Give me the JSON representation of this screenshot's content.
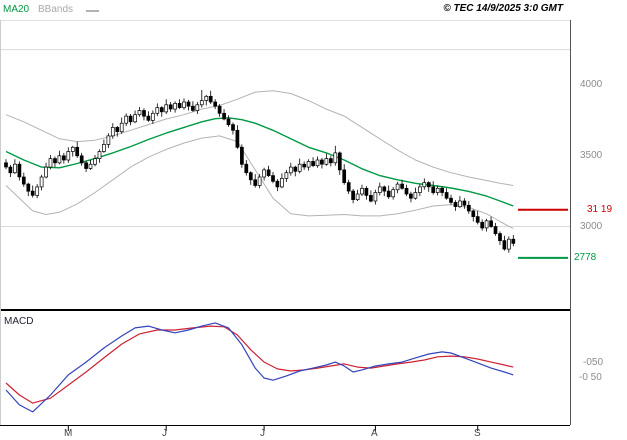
{
  "header": {
    "legend_ma20": "MA20",
    "legend_bbands": "BBands",
    "copyright": "© TEC 14/9/2025 3:0 GMT"
  },
  "chart_data": {
    "type": "candlestick",
    "title": "",
    "price_axis": {
      "labels": [
        {
          "text": "4000",
          "value": 4000
        },
        {
          "text": "3500",
          "value": 3500
        },
        {
          "text": "3000",
          "value": 3000
        }
      ],
      "ylim": [
        2420,
        4460
      ]
    },
    "x_axis": {
      "ticks": [
        {
          "label": "M",
          "bar": 14
        },
        {
          "label": "J",
          "bar": 36
        },
        {
          "label": "J",
          "bar": 58
        },
        {
          "label": "A",
          "bar": 83
        },
        {
          "label": "S",
          "bar": 106
        }
      ]
    },
    "gridlines": [
      4250,
      3000
    ],
    "candles": [
      [
        3450,
        3475,
        3405,
        3420
      ],
      [
        3420,
        3435,
        3350,
        3380
      ],
      [
        3380,
        3475,
        3370,
        3440
      ],
      [
        3440,
        3460,
        3325,
        3350
      ],
      [
        3350,
        3380,
        3280,
        3300
      ],
      [
        3300,
        3310,
        3215,
        3250
      ],
      [
        3250,
        3290,
        3205,
        3220
      ],
      [
        3220,
        3300,
        3200,
        3280
      ],
      [
        3280,
        3365,
        3255,
        3350
      ],
      [
        3350,
        3450,
        3340,
        3420
      ],
      [
        3420,
        3505,
        3405,
        3480
      ],
      [
        3480,
        3495,
        3420,
        3450
      ],
      [
        3450,
        3535,
        3440,
        3500
      ],
      [
        3500,
        3520,
        3445,
        3470
      ],
      [
        3470,
        3560,
        3450,
        3530
      ],
      [
        3530,
        3570,
        3495,
        3560
      ],
      [
        3560,
        3600,
        3485,
        3500
      ],
      [
        3500,
        3520,
        3430,
        3450
      ],
      [
        3450,
        3465,
        3385,
        3410
      ],
      [
        3410,
        3470,
        3400,
        3440
      ],
      [
        3440,
        3505,
        3425,
        3480
      ],
      [
        3480,
        3545,
        3450,
        3530
      ],
      [
        3530,
        3615,
        3520,
        3580
      ],
      [
        3580,
        3660,
        3555,
        3640
      ],
      [
        3640,
        3730,
        3620,
        3700
      ],
      [
        3700,
        3710,
        3635,
        3670
      ],
      [
        3670,
        3770,
        3655,
        3730
      ],
      [
        3730,
        3800,
        3710,
        3780
      ],
      [
        3780,
        3795,
        3715,
        3740
      ],
      [
        3740,
        3820,
        3730,
        3790
      ],
      [
        3790,
        3845,
        3775,
        3820
      ],
      [
        3820,
        3835,
        3750,
        3780
      ],
      [
        3780,
        3815,
        3740,
        3750
      ],
      [
        3750,
        3820,
        3725,
        3800
      ],
      [
        3800,
        3870,
        3780,
        3840
      ],
      [
        3840,
        3850,
        3775,
        3810
      ],
      [
        3810,
        3900,
        3795,
        3860
      ],
      [
        3860,
        3880,
        3810,
        3830
      ],
      [
        3830,
        3885,
        3805,
        3870
      ],
      [
        3870,
        3900,
        3830,
        3840
      ],
      [
        3840,
        3905,
        3825,
        3880
      ],
      [
        3880,
        3895,
        3820,
        3850
      ],
      [
        3850,
        3885,
        3810,
        3820
      ],
      [
        3820,
        3880,
        3795,
        3860
      ],
      [
        3860,
        3965,
        3840,
        3890
      ],
      [
        3890,
        3930,
        3855,
        3920
      ],
      [
        3920,
        3960,
        3865,
        3880
      ],
      [
        3880,
        3900,
        3830,
        3850
      ],
      [
        3850,
        3865,
        3775,
        3800
      ],
      [
        3800,
        3830,
        3750,
        3760
      ],
      [
        3760,
        3785,
        3705,
        3720
      ],
      [
        3720,
        3735,
        3650,
        3680
      ],
      [
        3680,
        3715,
        3550,
        3560
      ],
      [
        3560,
        3580,
        3415,
        3440
      ],
      [
        3440,
        3470,
        3360,
        3380
      ],
      [
        3380,
        3390,
        3295,
        3330
      ],
      [
        3330,
        3370,
        3275,
        3290
      ],
      [
        3290,
        3370,
        3270,
        3350
      ],
      [
        3350,
        3415,
        3325,
        3400
      ],
      [
        3400,
        3430,
        3350,
        3360
      ],
      [
        3360,
        3385,
        3305,
        3320
      ],
      [
        3320,
        3335,
        3250,
        3280
      ],
      [
        3280,
        3375,
        3270,
        3340
      ],
      [
        3340,
        3400,
        3315,
        3380
      ],
      [
        3380,
        3450,
        3360,
        3420
      ],
      [
        3420,
        3430,
        3355,
        3390
      ],
      [
        3390,
        3480,
        3375,
        3440
      ],
      [
        3440,
        3460,
        3400,
        3420
      ],
      [
        3420,
        3475,
        3395,
        3460
      ],
      [
        3460,
        3490,
        3420,
        3430
      ],
      [
        3430,
        3495,
        3415,
        3470
      ],
      [
        3470,
        3485,
        3410,
        3440
      ],
      [
        3440,
        3515,
        3430,
        3480
      ],
      [
        3480,
        3500,
        3425,
        3450
      ],
      [
        3450,
        3570,
        3430,
        3520
      ],
      [
        3520,
        3530,
        3365,
        3400
      ],
      [
        3400,
        3440,
        3295,
        3310
      ],
      [
        3310,
        3330,
        3230,
        3250
      ],
      [
        3250,
        3265,
        3165,
        3190
      ],
      [
        3190,
        3260,
        3180,
        3230
      ],
      [
        3230,
        3295,
        3215,
        3270
      ],
      [
        3270,
        3285,
        3190,
        3220
      ],
      [
        3220,
        3255,
        3170,
        3180
      ],
      [
        3180,
        3260,
        3155,
        3240
      ],
      [
        3240,
        3310,
        3220,
        3280
      ],
      [
        3280,
        3290,
        3215,
        3250
      ],
      [
        3250,
        3290,
        3195,
        3210
      ],
      [
        3210,
        3280,
        3190,
        3260
      ],
      [
        3260,
        3315,
        3235,
        3300
      ],
      [
        3300,
        3330,
        3260,
        3270
      ],
      [
        3270,
        3295,
        3215,
        3230
      ],
      [
        3230,
        3245,
        3170,
        3200
      ],
      [
        3200,
        3275,
        3190,
        3240
      ],
      [
        3240,
        3300,
        3215,
        3280
      ],
      [
        3280,
        3340,
        3260,
        3310
      ],
      [
        3310,
        3320,
        3245,
        3280
      ],
      [
        3280,
        3320,
        3225,
        3240
      ],
      [
        3240,
        3290,
        3220,
        3270
      ],
      [
        3270,
        3285,
        3215,
        3240
      ],
      [
        3240,
        3270,
        3190,
        3200
      ],
      [
        3200,
        3225,
        3155,
        3170
      ],
      [
        3170,
        3185,
        3110,
        3140
      ],
      [
        3140,
        3215,
        3130,
        3180
      ],
      [
        3180,
        3200,
        3125,
        3150
      ],
      [
        3150,
        3180,
        3090,
        3110
      ],
      [
        3110,
        3120,
        3035,
        3070
      ],
      [
        3070,
        3110,
        3015,
        3030
      ],
      [
        3030,
        3050,
        2970,
        2990
      ],
      [
        2990,
        3055,
        2965,
        3040
      ],
      [
        3040,
        3070,
        2990,
        3000
      ],
      [
        3000,
        3025,
        2935,
        2950
      ],
      [
        2950,
        2965,
        2870,
        2900
      ],
      [
        2900,
        2935,
        2830,
        2840
      ],
      [
        2840,
        2930,
        2815,
        2910
      ],
      [
        2910,
        2940,
        2860,
        2880
      ]
    ],
    "overlays": {
      "ma20": [
        [
          0,
          3530
        ],
        [
          4,
          3470
        ],
        [
          8,
          3420
        ],
        [
          12,
          3415
        ],
        [
          16,
          3445
        ],
        [
          20,
          3480
        ],
        [
          24,
          3520
        ],
        [
          28,
          3565
        ],
        [
          32,
          3615
        ],
        [
          36,
          3660
        ],
        [
          40,
          3700
        ],
        [
          44,
          3740
        ],
        [
          47,
          3762
        ],
        [
          50,
          3768
        ],
        [
          53,
          3755
        ],
        [
          56,
          3730
        ],
        [
          60,
          3680
        ],
        [
          64,
          3620
        ],
        [
          68,
          3560
        ],
        [
          72,
          3520
        ],
        [
          76,
          3470
        ],
        [
          80,
          3408
        ],
        [
          84,
          3360
        ],
        [
          88,
          3330
        ],
        [
          92,
          3305
        ],
        [
          96,
          3290
        ],
        [
          100,
          3272
        ],
        [
          104,
          3248
        ],
        [
          108,
          3215
        ],
        [
          111,
          3180
        ],
        [
          114,
          3145
        ]
      ],
      "bb_upper": [
        [
          0,
          3790
        ],
        [
          4,
          3740
        ],
        [
          8,
          3680
        ],
        [
          12,
          3620
        ],
        [
          16,
          3600
        ],
        [
          20,
          3610
        ],
        [
          24,
          3640
        ],
        [
          28,
          3680
        ],
        [
          32,
          3720
        ],
        [
          36,
          3760
        ],
        [
          40,
          3790
        ],
        [
          44,
          3830
        ],
        [
          48,
          3855
        ],
        [
          52,
          3900
        ],
        [
          56,
          3950
        ],
        [
          60,
          3960
        ],
        [
          64,
          3940
        ],
        [
          68,
          3890
        ],
        [
          72,
          3830
        ],
        [
          76,
          3780
        ],
        [
          80,
          3700
        ],
        [
          84,
          3620
        ],
        [
          88,
          3540
        ],
        [
          92,
          3470
        ],
        [
          96,
          3420
        ],
        [
          100,
          3380
        ],
        [
          104,
          3350
        ],
        [
          108,
          3325
        ],
        [
          111,
          3305
        ],
        [
          114,
          3290
        ]
      ],
      "bb_lower": [
        [
          0,
          3290
        ],
        [
          3,
          3200
        ],
        [
          6,
          3110
        ],
        [
          9,
          3085
        ],
        [
          12,
          3100
        ],
        [
          16,
          3160
        ],
        [
          20,
          3240
        ],
        [
          24,
          3330
        ],
        [
          28,
          3420
        ],
        [
          32,
          3490
        ],
        [
          36,
          3545
        ],
        [
          40,
          3590
        ],
        [
          44,
          3625
        ],
        [
          48,
          3640
        ],
        [
          52,
          3600
        ],
        [
          56,
          3400
        ],
        [
          60,
          3200
        ],
        [
          64,
          3090
        ],
        [
          68,
          3075
        ],
        [
          72,
          3080
        ],
        [
          76,
          3085
        ],
        [
          80,
          3075
        ],
        [
          84,
          3075
        ],
        [
          88,
          3090
        ],
        [
          92,
          3115
        ],
        [
          96,
          3145
        ],
        [
          100,
          3155
        ],
        [
          104,
          3135
        ],
        [
          108,
          3090
        ],
        [
          111,
          3035
        ],
        [
          114,
          2985
        ]
      ]
    },
    "levels": [
      {
        "text": "31 19",
        "value": 3119,
        "color": "#cc0000"
      },
      {
        "text": "2778",
        "value": 2778,
        "color": "#009944"
      }
    ],
    "macd_panel": {
      "label": "MACD",
      "ylim": [
        -1.8,
        1.4
      ],
      "axis_labels": [
        {
          "text": "-050"
        },
        {
          "text": "-0 50"
        }
      ],
      "macd": [
        [
          0,
          -0.81
        ],
        [
          3,
          -1.23
        ],
        [
          6,
          -1.43
        ],
        [
          10,
          -0.95
        ],
        [
          14,
          -0.38
        ],
        [
          18,
          -0.02
        ],
        [
          22,
          0.38
        ],
        [
          26,
          0.72
        ],
        [
          29,
          0.95
        ],
        [
          32,
          1.0
        ],
        [
          35,
          0.89
        ],
        [
          38,
          0.81
        ],
        [
          41,
          0.89
        ],
        [
          44,
          1.0
        ],
        [
          47,
          1.09
        ],
        [
          50,
          0.95
        ],
        [
          53,
          0.47
        ],
        [
          56,
          -0.19
        ],
        [
          58,
          -0.47
        ],
        [
          60,
          -0.53
        ],
        [
          63,
          -0.41
        ],
        [
          66,
          -0.27
        ],
        [
          69,
          -0.19
        ],
        [
          72,
          -0.1
        ],
        [
          74,
          -0.02
        ],
        [
          76,
          -0.13
        ],
        [
          78,
          -0.3
        ],
        [
          80,
          -0.24
        ],
        [
          83,
          -0.13
        ],
        [
          86,
          -0.07
        ],
        [
          89,
          -0.02
        ],
        [
          92,
          0.1
        ],
        [
          95,
          0.21
        ],
        [
          98,
          0.27
        ],
        [
          100,
          0.24
        ],
        [
          103,
          0.1
        ],
        [
          106,
          -0.04
        ],
        [
          109,
          -0.19
        ],
        [
          112,
          -0.3
        ],
        [
          114,
          -0.38
        ]
      ],
      "signal": [
        [
          0,
          -0.61
        ],
        [
          3,
          -0.95
        ],
        [
          6,
          -1.18
        ],
        [
          10,
          -1.04
        ],
        [
          14,
          -0.67
        ],
        [
          18,
          -0.3
        ],
        [
          22,
          0.1
        ],
        [
          26,
          0.49
        ],
        [
          30,
          0.78
        ],
        [
          34,
          0.89
        ],
        [
          38,
          0.89
        ],
        [
          42,
          0.95
        ],
        [
          46,
          1.0
        ],
        [
          49,
          0.98
        ],
        [
          52,
          0.75
        ],
        [
          55,
          0.33
        ],
        [
          58,
          -0.02
        ],
        [
          61,
          -0.21
        ],
        [
          64,
          -0.27
        ],
        [
          67,
          -0.24
        ],
        [
          70,
          -0.19
        ],
        [
          73,
          -0.13
        ],
        [
          76,
          -0.07
        ],
        [
          79,
          -0.16
        ],
        [
          82,
          -0.19
        ],
        [
          85,
          -0.13
        ],
        [
          88,
          -0.07
        ],
        [
          91,
          -0.02
        ],
        [
          94,
          0.04
        ],
        [
          97,
          0.13
        ],
        [
          100,
          0.15
        ],
        [
          103,
          0.13
        ],
        [
          106,
          0.07
        ],
        [
          109,
          -0.02
        ],
        [
          112,
          -0.1
        ],
        [
          114,
          -0.16
        ]
      ]
    },
    "colors": {
      "ma20": "#009944",
      "bbands": "#b3b3b3",
      "candle": "#000000",
      "macd": "#3344bb",
      "signal": "#cc2233",
      "grid": "#d9d9d9",
      "axis_text": "#8c8c8c"
    }
  }
}
